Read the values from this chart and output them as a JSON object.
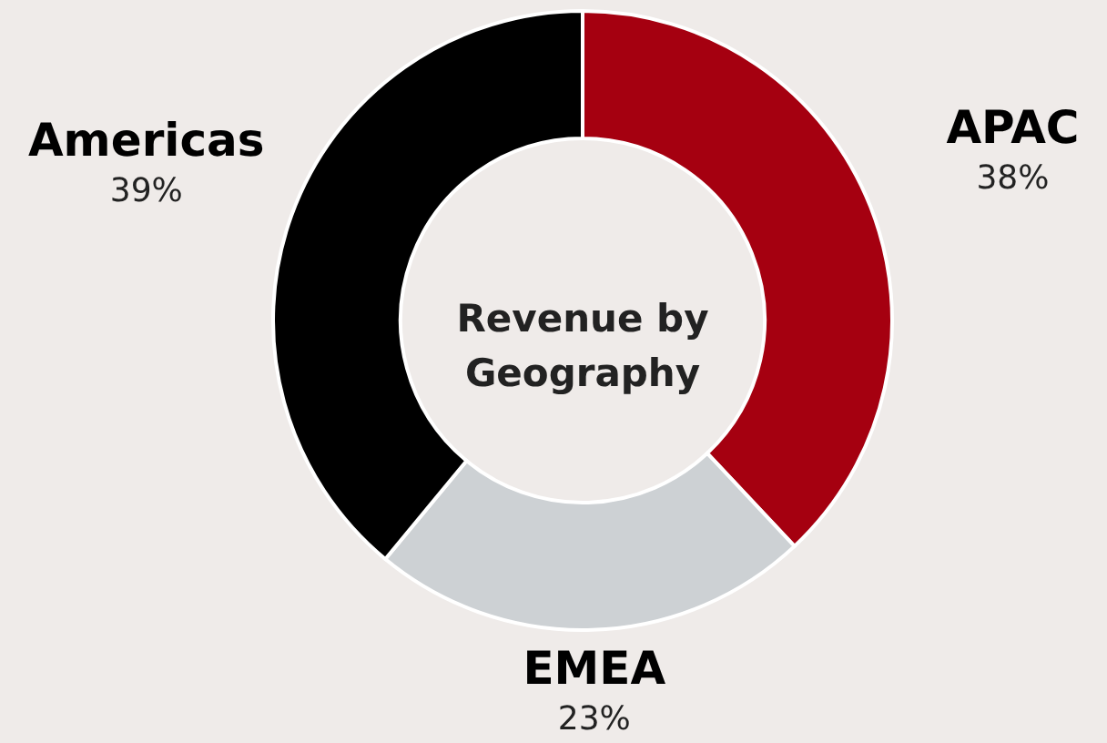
{
  "chart_data": {
    "type": "donut",
    "title": "Revenue by Geography",
    "categories": [
      "APAC",
      "EMEA",
      "Americas"
    ],
    "values": [
      38,
      23,
      39
    ],
    "colors": [
      "#a50010",
      "#cdd1d4",
      "#000000"
    ],
    "value_labels": [
      "38%",
      "23%",
      "39%"
    ]
  }
}
